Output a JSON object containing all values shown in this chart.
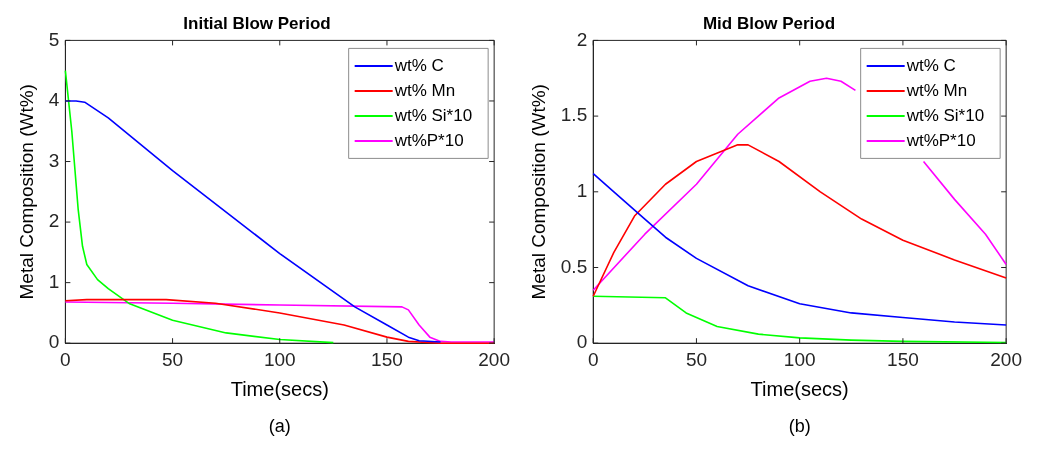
{
  "chart_data": [
    {
      "type": "line",
      "title": "Initial Blow Period",
      "xlabel": "Time(secs)",
      "ylabel": "Metal Composition (Wt%)",
      "annotations": [
        "(a)"
      ],
      "xlim": [
        0,
        200
      ],
      "xticks": [
        0,
        50,
        100,
        150,
        200
      ],
      "ylim": [
        0,
        5
      ],
      "yticks": [
        0,
        1,
        2,
        3,
        4,
        5
      ],
      "legend": "top right",
      "series": [
        {
          "name": "wt% C",
          "color": "#0000ff",
          "x": [
            0,
            5,
            9,
            20,
            50,
            100,
            135,
            150,
            160,
            165,
            175
          ],
          "values": [
            4,
            4,
            3.98,
            3.72,
            2.85,
            1.48,
            0.6,
            0.3,
            0.1,
            0.04,
            0.02
          ]
        },
        {
          "name": "wt% Mn",
          "color": "#ff0000",
          "x": [
            0,
            10,
            47,
            70,
            100,
            130,
            150,
            160,
            175,
            200
          ],
          "values": [
            0.7,
            0.72,
            0.72,
            0.66,
            0.5,
            0.3,
            0.1,
            0.03,
            0,
            0
          ]
        },
        {
          "name": "wt% Si*10",
          "color": "#00ff00",
          "x": [
            0,
            3,
            6,
            8,
            10,
            15,
            20,
            30,
            50,
            75,
            100,
            125
          ],
          "values": [
            4.5,
            3.5,
            2.2,
            1.6,
            1.3,
            1.05,
            0.9,
            0.65,
            0.38,
            0.17,
            0.06,
            0.01
          ]
        },
        {
          "name": "wt%P*10",
          "color": "#ff00ff",
          "x": [
            0,
            50,
            100,
            157,
            160,
            165,
            170,
            175,
            180,
            200
          ],
          "values": [
            0.68,
            0.66,
            0.63,
            0.6,
            0.55,
            0.3,
            0.1,
            0.03,
            0.02,
            0.02
          ]
        }
      ]
    },
    {
      "type": "line",
      "title": "Mid Blow Period",
      "xlabel": "Time(secs)",
      "ylabel": "Metal Composition (Wt%)",
      "annotations": [
        "(b)"
      ],
      "xlim": [
        0,
        200
      ],
      "xticks": [
        0,
        50,
        100,
        150,
        200
      ],
      "ylim": [
        0,
        2
      ],
      "yticks": [
        0,
        0.5,
        1,
        1.5,
        2
      ],
      "legend": "top right",
      "series": [
        {
          "name": "wt% C",
          "color": "#0000ff",
          "x": [
            0,
            10,
            25,
            35,
            50,
            75,
            100,
            125,
            150,
            175,
            200
          ],
          "values": [
            1.12,
            1.0,
            0.82,
            0.7,
            0.56,
            0.38,
            0.26,
            0.2,
            0.17,
            0.14,
            0.12
          ]
        },
        {
          "name": "wt% Mn",
          "color": "#ff0000",
          "x": [
            0,
            10,
            20,
            35,
            50,
            70,
            75,
            90,
            110,
            130,
            150,
            175,
            200
          ],
          "values": [
            0.31,
            0.6,
            0.84,
            1.05,
            1.2,
            1.31,
            1.31,
            1.2,
            1.0,
            0.82,
            0.68,
            0.55,
            0.43
          ]
        },
        {
          "name": "wt% Si*10",
          "color": "#00ff00",
          "x": [
            0,
            35,
            45,
            60,
            80,
            100,
            125,
            150,
            200
          ],
          "values": [
            0.31,
            0.3,
            0.2,
            0.11,
            0.06,
            0.035,
            0.02,
            0.012,
            0.005
          ]
        },
        {
          "name": "wt%P*10",
          "color": "#ff00ff",
          "x": [
            0,
            25,
            50,
            70,
            90,
            105,
            113,
            120,
            127,
            135,
            145,
            150,
            157,
            160,
            175,
            190,
            200
          ],
          "values": [
            0.35,
            0.72,
            1.05,
            1.38,
            1.62,
            1.73,
            1.75,
            1.73,
            1.67,
            null,
            null,
            null,
            null,
            1.2,
            0.95,
            0.72,
            0.52
          ]
        }
      ]
    }
  ]
}
